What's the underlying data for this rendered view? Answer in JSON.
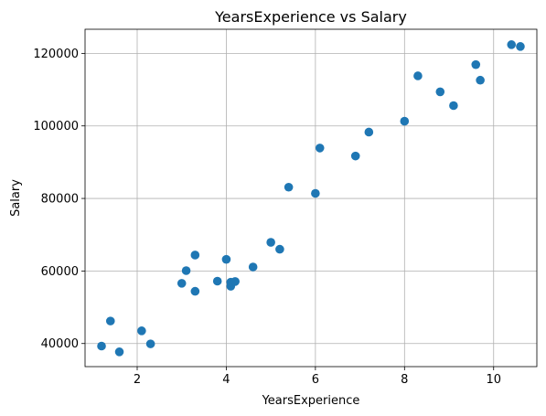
{
  "chart_data": {
    "type": "scatter",
    "title": "YearsExperience vs Salary",
    "xlabel": "YearsExperience",
    "ylabel": "Salary",
    "xlim": [
      0.83,
      10.97
    ],
    "ylim": [
      33630,
      126650
    ],
    "xticks": [
      2,
      4,
      6,
      8,
      10
    ],
    "yticks": [
      40000,
      60000,
      80000,
      100000,
      120000
    ],
    "grid": true,
    "marker_color": "#1f77b4",
    "series": [
      {
        "name": "Salary",
        "points": [
          {
            "x": 1.2,
            "y": 39300
          },
          {
            "x": 1.4,
            "y": 46200
          },
          {
            "x": 1.6,
            "y": 37700
          },
          {
            "x": 2.1,
            "y": 43500
          },
          {
            "x": 2.3,
            "y": 39900
          },
          {
            "x": 3.0,
            "y": 56600
          },
          {
            "x": 3.1,
            "y": 60100
          },
          {
            "x": 3.3,
            "y": 54400
          },
          {
            "x": 3.3,
            "y": 64400
          },
          {
            "x": 3.8,
            "y": 57200
          },
          {
            "x": 4.0,
            "y": 63200
          },
          {
            "x": 4.1,
            "y": 55800
          },
          {
            "x": 4.1,
            "y": 56900
          },
          {
            "x": 4.2,
            "y": 57100
          },
          {
            "x": 4.6,
            "y": 61100
          },
          {
            "x": 5.0,
            "y": 67900
          },
          {
            "x": 5.2,
            "y": 66000
          },
          {
            "x": 5.4,
            "y": 83100
          },
          {
            "x": 6.0,
            "y": 81400
          },
          {
            "x": 6.1,
            "y": 93900
          },
          {
            "x": 6.9,
            "y": 91700
          },
          {
            "x": 7.2,
            "y": 98300
          },
          {
            "x": 8.0,
            "y": 101300
          },
          {
            "x": 8.3,
            "y": 113800
          },
          {
            "x": 8.8,
            "y": 109400
          },
          {
            "x": 9.1,
            "y": 105600
          },
          {
            "x": 9.6,
            "y": 116900
          },
          {
            "x": 9.7,
            "y": 112600
          },
          {
            "x": 10.4,
            "y": 122400
          },
          {
            "x": 10.6,
            "y": 121900
          }
        ]
      }
    ]
  }
}
